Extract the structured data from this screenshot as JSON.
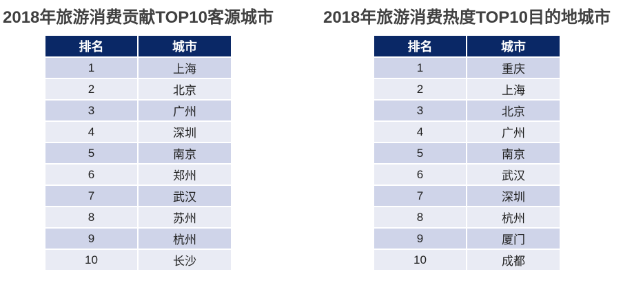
{
  "colors": {
    "header_bg": "#0a2866",
    "header_text": "#ffffff",
    "row_odd": "#cfd4e9",
    "row_even": "#e9ebf4",
    "title_color": "#404040",
    "cell_text": "#1f1f1f",
    "page_bg": "#ffffff"
  },
  "chart_data": [
    {
      "type": "table",
      "title": "2018年旅游消费贡献TOP10客源城市",
      "columns": [
        "排名",
        "城市"
      ],
      "rows": [
        [
          "1",
          "上海"
        ],
        [
          "2",
          "北京"
        ],
        [
          "3",
          "广州"
        ],
        [
          "4",
          "深圳"
        ],
        [
          "5",
          "南京"
        ],
        [
          "6",
          "郑州"
        ],
        [
          "7",
          "武汉"
        ],
        [
          "8",
          "苏州"
        ],
        [
          "9",
          "杭州"
        ],
        [
          "10",
          "长沙"
        ]
      ],
      "layout": {
        "legend": "none",
        "grid": "banded-rows",
        "position": "left"
      }
    },
    {
      "type": "table",
      "title": "2018年旅游消费热度TOP10目的地城市",
      "columns": [
        "排名",
        "城市"
      ],
      "rows": [
        [
          "1",
          "重庆"
        ],
        [
          "2",
          "上海"
        ],
        [
          "3",
          "北京"
        ],
        [
          "4",
          "广州"
        ],
        [
          "5",
          "南京"
        ],
        [
          "6",
          "武汉"
        ],
        [
          "7",
          "深圳"
        ],
        [
          "8",
          "杭州"
        ],
        [
          "9",
          "厦门"
        ],
        [
          "10",
          "成都"
        ]
      ],
      "layout": {
        "legend": "none",
        "grid": "banded-rows",
        "position": "right"
      }
    }
  ]
}
